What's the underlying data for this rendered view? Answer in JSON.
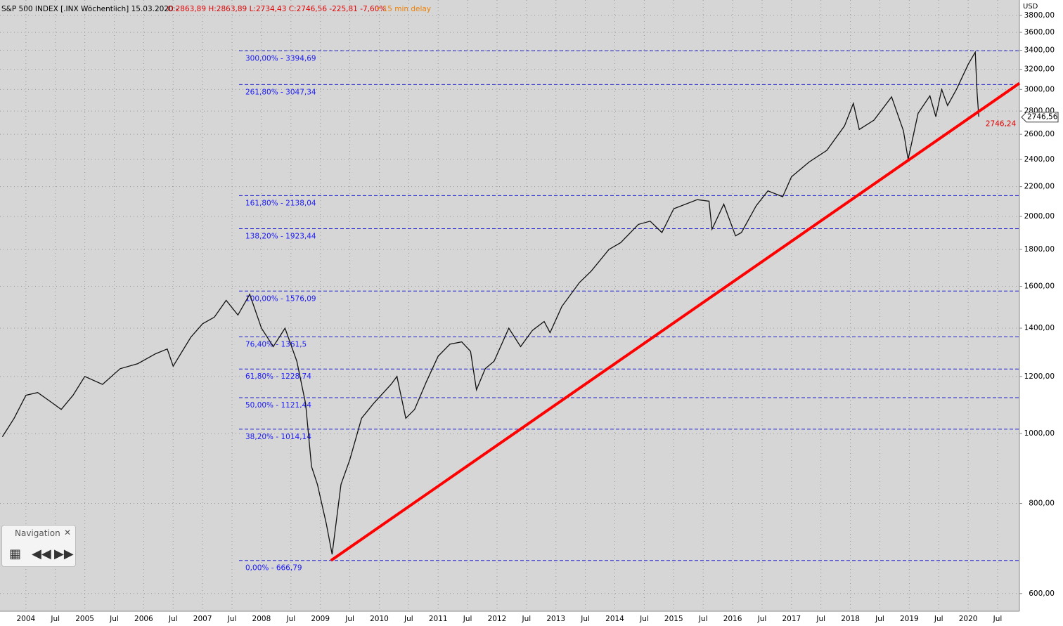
{
  "chart_data": {
    "type": "line",
    "header": {
      "name": "S&P 500 INDEX [.INX Wöchentlich] 15.03.2020 -",
      "ohlc": "O:2863,89 H:2863,89 L:2734,43 C:2746,56 -225,81 -7,60%",
      "delay": "• 15 min delay"
    },
    "currency": "USD",
    "log_scale": true,
    "grid": true,
    "xlim": [
      2003.56,
      2020.87
    ],
    "ylim": [
      567,
      3992
    ],
    "xticks": [
      {
        "value": 2004,
        "label": "2004"
      },
      {
        "value": 2004.5,
        "label": "Jul"
      },
      {
        "value": 2005,
        "label": "2005"
      },
      {
        "value": 2005.5,
        "label": "Jul"
      },
      {
        "value": 2006,
        "label": "2006"
      },
      {
        "value": 2006.5,
        "label": "Jul"
      },
      {
        "value": 2007,
        "label": "2007"
      },
      {
        "value": 2007.5,
        "label": "Jul"
      },
      {
        "value": 2008,
        "label": "2008"
      },
      {
        "value": 2008.5,
        "label": "Jul"
      },
      {
        "value": 2009,
        "label": "2009"
      },
      {
        "value": 2009.5,
        "label": "Jul"
      },
      {
        "value": 2010,
        "label": "2010"
      },
      {
        "value": 2010.5,
        "label": "Jul"
      },
      {
        "value": 2011,
        "label": "2011"
      },
      {
        "value": 2011.5,
        "label": "Jul"
      },
      {
        "value": 2012,
        "label": "2012"
      },
      {
        "value": 2012.5,
        "label": "Jul"
      },
      {
        "value": 2013,
        "label": "2013"
      },
      {
        "value": 2013.5,
        "label": "Jul"
      },
      {
        "value": 2014,
        "label": "2014"
      },
      {
        "value": 2014.5,
        "label": "Jul"
      },
      {
        "value": 2015,
        "label": "2015"
      },
      {
        "value": 2015.5,
        "label": "Jul"
      },
      {
        "value": 2016,
        "label": "2016"
      },
      {
        "value": 2016.5,
        "label": "Jul"
      },
      {
        "value": 2017,
        "label": "2017"
      },
      {
        "value": 2017.5,
        "label": "Jul"
      },
      {
        "value": 2018,
        "label": "2018"
      },
      {
        "value": 2018.5,
        "label": "Jul"
      },
      {
        "value": 2019,
        "label": "2019"
      },
      {
        "value": 2019.5,
        "label": "Jul"
      },
      {
        "value": 2020,
        "label": "2020"
      },
      {
        "value": 2020.5,
        "label": "Jul"
      }
    ],
    "yticks": [
      {
        "value": 600,
        "label": "600,00"
      },
      {
        "value": 800,
        "label": "800,00"
      },
      {
        "value": 1000,
        "label": "1000,00"
      },
      {
        "value": 1200,
        "label": "1200,00"
      },
      {
        "value": 1400,
        "label": "1400,00"
      },
      {
        "value": 1600,
        "label": "1600,00"
      },
      {
        "value": 1800,
        "label": "1800,00"
      },
      {
        "value": 2000,
        "label": "2000,00"
      },
      {
        "value": 2200,
        "label": "2200,00"
      },
      {
        "value": 2400,
        "label": "2400,00"
      },
      {
        "value": 2600,
        "label": "2600,00"
      },
      {
        "value": 2800,
        "label": "2800,00"
      },
      {
        "value": 3000,
        "label": "3000,00"
      },
      {
        "value": 3200,
        "label": "3200,00"
      },
      {
        "value": 3400,
        "label": "3400,00"
      },
      {
        "value": 3600,
        "label": "3600,00"
      },
      {
        "value": 3800,
        "label": "3800,00"
      }
    ],
    "series": [
      {
        "name": "S&P 500",
        "color": "#111111",
        "x": [
          2003.6,
          2003.8,
          2004.0,
          2004.2,
          2004.4,
          2004.6,
          2004.8,
          2005.0,
          2005.3,
          2005.6,
          2005.9,
          2006.2,
          2006.4,
          2006.5,
          2006.8,
          2007.0,
          2007.2,
          2007.4,
          2007.6,
          2007.8,
          2008.0,
          2008.2,
          2008.4,
          2008.6,
          2008.75,
          2008.85,
          2008.95,
          2009.1,
          2009.2,
          2009.35,
          2009.5,
          2009.7,
          2009.9,
          2010.2,
          2010.3,
          2010.45,
          2010.6,
          2010.8,
          2011.0,
          2011.2,
          2011.4,
          2011.55,
          2011.65,
          2011.8,
          2011.95,
          2012.2,
          2012.4,
          2012.6,
          2012.8,
          2012.9,
          2013.1,
          2013.4,
          2013.6,
          2013.9,
          2014.1,
          2014.4,
          2014.6,
          2014.8,
          2015.0,
          2015.4,
          2015.6,
          2015.65,
          2015.85,
          2016.05,
          2016.15,
          2016.4,
          2016.6,
          2016.85,
          2017.0,
          2017.3,
          2017.6,
          2017.9,
          2018.05,
          2018.15,
          2018.4,
          2018.7,
          2018.9,
          2018.98,
          2019.15,
          2019.35,
          2019.45,
          2019.55,
          2019.65,
          2019.8,
          2020.0,
          2020.12,
          2020.15,
          2020.18
        ],
        "values": [
          990,
          1050,
          1130,
          1140,
          1110,
          1080,
          1130,
          1200,
          1170,
          1230,
          1250,
          1290,
          1310,
          1240,
          1360,
          1420,
          1450,
          1530,
          1460,
          1560,
          1400,
          1320,
          1400,
          1260,
          1100,
          900,
          850,
          750,
          680,
          850,
          920,
          1050,
          1100,
          1170,
          1200,
          1050,
          1080,
          1180,
          1280,
          1330,
          1340,
          1300,
          1150,
          1230,
          1260,
          1400,
          1320,
          1390,
          1430,
          1380,
          1500,
          1620,
          1680,
          1800,
          1840,
          1950,
          1970,
          1900,
          2050,
          2110,
          2100,
          1920,
          2080,
          1880,
          1900,
          2070,
          2170,
          2130,
          2270,
          2380,
          2470,
          2670,
          2870,
          2640,
          2720,
          2930,
          2630,
          2400,
          2780,
          2940,
          2750,
          3000,
          2850,
          3000,
          3250,
          3380,
          2980,
          2750
        ]
      }
    ],
    "fib_levels": [
      {
        "value": 3394.69,
        "label": "300,00% - 3394,69"
      },
      {
        "value": 3047.34,
        "label": "261,80% - 3047,34"
      },
      {
        "value": 2138.04,
        "label": "161,80% - 2138,04"
      },
      {
        "value": 1923.44,
        "label": "138,20% - 1923,44"
      },
      {
        "value": 1576.09,
        "label": "100,00% - 1576,09"
      },
      {
        "value": 1361.5,
        "label": "76,40% - 1361,5"
      },
      {
        "value": 1228.74,
        "label": "61,80% - 1228,74"
      },
      {
        "value": 1121.44,
        "label": "50,00% - 1121,44"
      },
      {
        "value": 1014.14,
        "label": "38,20% - 1014,14"
      },
      {
        "value": 666.79,
        "label": "0,00% - 666,79"
      }
    ],
    "trendline": {
      "color": "#ff0000",
      "x": [
        2009.18,
        2020.87
      ],
      "values": [
        666.79,
        3060
      ]
    },
    "annotation": {
      "x": 2020.2,
      "value": 2746.24,
      "label": "2746,24"
    },
    "last_price": {
      "value": 2746.56,
      "label": "2746,56"
    },
    "navigation": {
      "title": "Navigation"
    }
  }
}
